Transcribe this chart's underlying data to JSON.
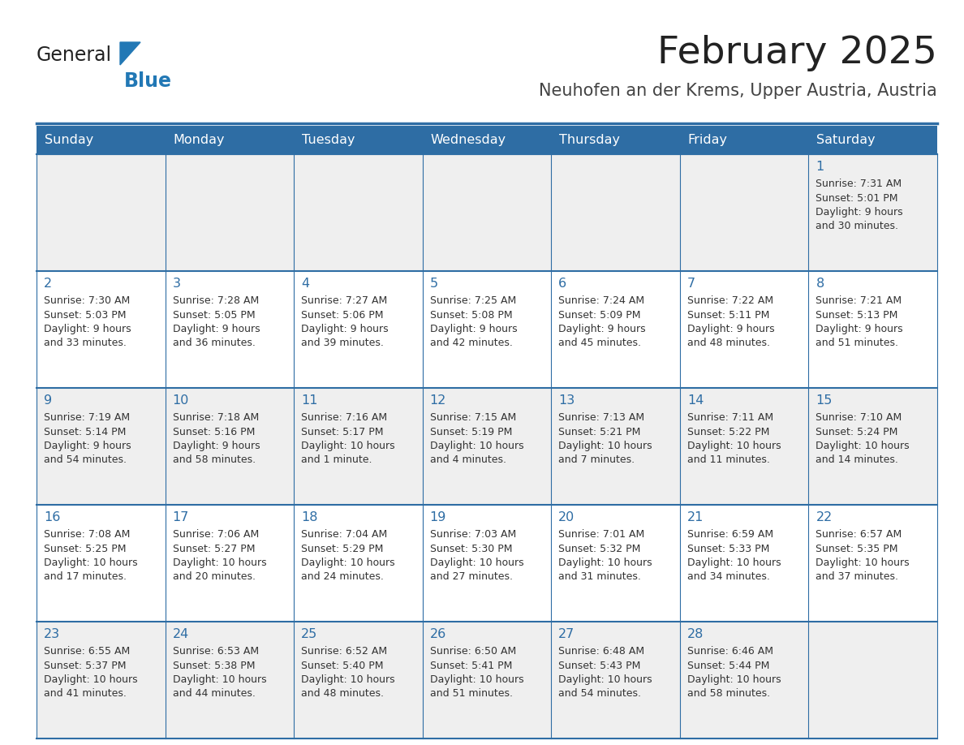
{
  "title": "February 2025",
  "subtitle": "Neuhofen an der Krems, Upper Austria, Austria",
  "header_bg": "#2E6DA4",
  "header_text_color": "#FFFFFF",
  "day_headers": [
    "Sunday",
    "Monday",
    "Tuesday",
    "Wednesday",
    "Thursday",
    "Friday",
    "Saturday"
  ],
  "title_color": "#222222",
  "subtitle_color": "#444444",
  "day_num_color": "#2E6DA4",
  "info_color": "#333333",
  "grid_line_color": "#2E6DA4",
  "odd_row_bg": "#EFEFEF",
  "even_row_bg": "#FFFFFF",
  "logo_general_color": "#222222",
  "logo_blue_color": "#2278B5",
  "calendar_data": [
    [
      null,
      null,
      null,
      null,
      null,
      null,
      {
        "day": "1",
        "sunrise": "7:31 AM",
        "sunset": "5:01 PM",
        "daylight": "9 hours",
        "daylight2": "and 30 minutes."
      }
    ],
    [
      {
        "day": "2",
        "sunrise": "7:30 AM",
        "sunset": "5:03 PM",
        "daylight": "9 hours",
        "daylight2": "and 33 minutes."
      },
      {
        "day": "3",
        "sunrise": "7:28 AM",
        "sunset": "5:05 PM",
        "daylight": "9 hours",
        "daylight2": "and 36 minutes."
      },
      {
        "day": "4",
        "sunrise": "7:27 AM",
        "sunset": "5:06 PM",
        "daylight": "9 hours",
        "daylight2": "and 39 minutes."
      },
      {
        "day": "5",
        "sunrise": "7:25 AM",
        "sunset": "5:08 PM",
        "daylight": "9 hours",
        "daylight2": "and 42 minutes."
      },
      {
        "day": "6",
        "sunrise": "7:24 AM",
        "sunset": "5:09 PM",
        "daylight": "9 hours",
        "daylight2": "and 45 minutes."
      },
      {
        "day": "7",
        "sunrise": "7:22 AM",
        "sunset": "5:11 PM",
        "daylight": "9 hours",
        "daylight2": "and 48 minutes."
      },
      {
        "day": "8",
        "sunrise": "7:21 AM",
        "sunset": "5:13 PM",
        "daylight": "9 hours",
        "daylight2": "and 51 minutes."
      }
    ],
    [
      {
        "day": "9",
        "sunrise": "7:19 AM",
        "sunset": "5:14 PM",
        "daylight": "9 hours",
        "daylight2": "and 54 minutes."
      },
      {
        "day": "10",
        "sunrise": "7:18 AM",
        "sunset": "5:16 PM",
        "daylight": "9 hours",
        "daylight2": "and 58 minutes."
      },
      {
        "day": "11",
        "sunrise": "7:16 AM",
        "sunset": "5:17 PM",
        "daylight": "10 hours",
        "daylight2": "and 1 minute."
      },
      {
        "day": "12",
        "sunrise": "7:15 AM",
        "sunset": "5:19 PM",
        "daylight": "10 hours",
        "daylight2": "and 4 minutes."
      },
      {
        "day": "13",
        "sunrise": "7:13 AM",
        "sunset": "5:21 PM",
        "daylight": "10 hours",
        "daylight2": "and 7 minutes."
      },
      {
        "day": "14",
        "sunrise": "7:11 AM",
        "sunset": "5:22 PM",
        "daylight": "10 hours",
        "daylight2": "and 11 minutes."
      },
      {
        "day": "15",
        "sunrise": "7:10 AM",
        "sunset": "5:24 PM",
        "daylight": "10 hours",
        "daylight2": "and 14 minutes."
      }
    ],
    [
      {
        "day": "16",
        "sunrise": "7:08 AM",
        "sunset": "5:25 PM",
        "daylight": "10 hours",
        "daylight2": "and 17 minutes."
      },
      {
        "day": "17",
        "sunrise": "7:06 AM",
        "sunset": "5:27 PM",
        "daylight": "10 hours",
        "daylight2": "and 20 minutes."
      },
      {
        "day": "18",
        "sunrise": "7:04 AM",
        "sunset": "5:29 PM",
        "daylight": "10 hours",
        "daylight2": "and 24 minutes."
      },
      {
        "day": "19",
        "sunrise": "7:03 AM",
        "sunset": "5:30 PM",
        "daylight": "10 hours",
        "daylight2": "and 27 minutes."
      },
      {
        "day": "20",
        "sunrise": "7:01 AM",
        "sunset": "5:32 PM",
        "daylight": "10 hours",
        "daylight2": "and 31 minutes."
      },
      {
        "day": "21",
        "sunrise": "6:59 AM",
        "sunset": "5:33 PM",
        "daylight": "10 hours",
        "daylight2": "and 34 minutes."
      },
      {
        "day": "22",
        "sunrise": "6:57 AM",
        "sunset": "5:35 PM",
        "daylight": "10 hours",
        "daylight2": "and 37 minutes."
      }
    ],
    [
      {
        "day": "23",
        "sunrise": "6:55 AM",
        "sunset": "5:37 PM",
        "daylight": "10 hours",
        "daylight2": "and 41 minutes."
      },
      {
        "day": "24",
        "sunrise": "6:53 AM",
        "sunset": "5:38 PM",
        "daylight": "10 hours",
        "daylight2": "and 44 minutes."
      },
      {
        "day": "25",
        "sunrise": "6:52 AM",
        "sunset": "5:40 PM",
        "daylight": "10 hours",
        "daylight2": "and 48 minutes."
      },
      {
        "day": "26",
        "sunrise": "6:50 AM",
        "sunset": "5:41 PM",
        "daylight": "10 hours",
        "daylight2": "and 51 minutes."
      },
      {
        "day": "27",
        "sunrise": "6:48 AM",
        "sunset": "5:43 PM",
        "daylight": "10 hours",
        "daylight2": "and 54 minutes."
      },
      {
        "day": "28",
        "sunrise": "6:46 AM",
        "sunset": "5:44 PM",
        "daylight": "10 hours",
        "daylight2": "and 58 minutes."
      },
      null
    ]
  ]
}
